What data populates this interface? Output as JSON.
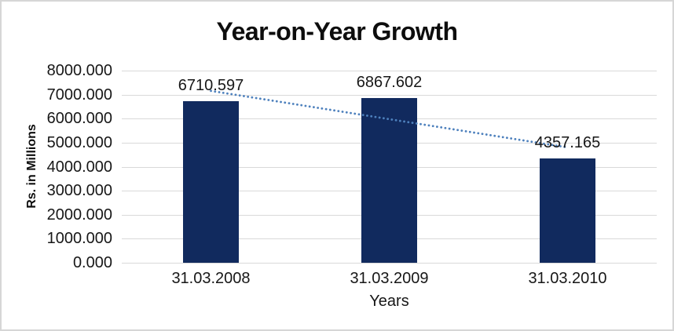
{
  "chart_data": {
    "type": "bar",
    "title": "Year-on-Year Growth",
    "xlabel": "Years",
    "ylabel": "Rs. in Millions",
    "categories": [
      "31.03.2008",
      "31.03.2009",
      "31.03.2010"
    ],
    "values": [
      6710.597,
      6867.602,
      4357.165
    ],
    "data_labels": [
      "6710.597",
      "6867.602",
      "4357.165"
    ],
    "y_tick_labels": [
      "8000.000",
      "7000.000",
      "6000.000",
      "5000.000",
      "4000.000",
      "3000.000",
      "2000.000",
      "1000.000",
      "0.000"
    ],
    "ylim": [
      0,
      8000
    ],
    "grid": true,
    "legend_position": "none",
    "colors": {
      "bar": "#112a5e",
      "gridline": "#d9d9d9",
      "trendline": "#4e81bd",
      "text": "#171717"
    },
    "trendline": {
      "kind": "linear",
      "style": "dotted"
    }
  }
}
